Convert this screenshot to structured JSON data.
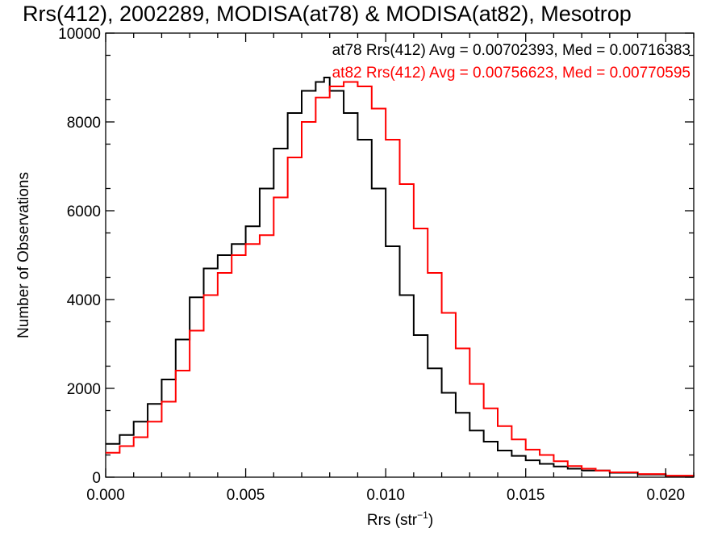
{
  "chart_data": {
    "type": "line",
    "title": "Rrs(412), 2002289, MODISA(at78) & MODISA(at82), Mesotrop",
    "xlabel": "Rrs (str",
    "xlabel_sup": "−1",
    "xlabel_close": ")",
    "ylabel": "Number of Observations",
    "xlim": [
      0,
      0.021
    ],
    "ylim": [
      0,
      10000
    ],
    "x_ticks": [
      0.0,
      0.005,
      0.01,
      0.015,
      0.02
    ],
    "x_tick_labels": [
      "0.000",
      "0.005",
      "0.010",
      "0.015",
      "0.020"
    ],
    "y_ticks": [
      0,
      2000,
      4000,
      6000,
      8000,
      10000
    ],
    "y_tick_labels": [
      "0",
      "2000",
      "4000",
      "6000",
      "8000",
      "10000"
    ],
    "grid": false,
    "legend_placement": "top-right",
    "annotations": [
      "at78 Rrs(412) Avg = 0.00702393, Med = 0.00716383",
      "at82 Rrs(412) Avg = 0.00756623, Med = 0.00770595"
    ],
    "series": [
      {
        "name": "at78",
        "color": "#000000",
        "x": [
          0.0,
          0.0005,
          0.001,
          0.0015,
          0.002,
          0.0025,
          0.003,
          0.0035,
          0.004,
          0.0045,
          0.005,
          0.0055,
          0.006,
          0.0065,
          0.007,
          0.0075,
          0.0078,
          0.008,
          0.0085,
          0.009,
          0.0095,
          0.01,
          0.0105,
          0.011,
          0.0115,
          0.012,
          0.0125,
          0.013,
          0.0135,
          0.014,
          0.0145,
          0.015,
          0.0155,
          0.016,
          0.0165,
          0.017,
          0.018,
          0.019,
          0.02,
          0.021
        ],
        "y": [
          750,
          950,
          1250,
          1650,
          2200,
          3100,
          4050,
          4700,
          5000,
          5250,
          5650,
          6500,
          7400,
          8200,
          8700,
          8900,
          9000,
          8700,
          8200,
          7600,
          6500,
          5200,
          4100,
          3200,
          2450,
          1900,
          1450,
          1050,
          800,
          600,
          480,
          380,
          300,
          240,
          190,
          150,
          100,
          60,
          30,
          15
        ]
      },
      {
        "name": "at82",
        "color": "#ff0000",
        "x": [
          0.0,
          0.0005,
          0.001,
          0.0015,
          0.002,
          0.0025,
          0.003,
          0.0035,
          0.004,
          0.0045,
          0.005,
          0.0055,
          0.006,
          0.0065,
          0.007,
          0.0075,
          0.008,
          0.0085,
          0.009,
          0.0095,
          0.01,
          0.0105,
          0.011,
          0.0115,
          0.012,
          0.0125,
          0.013,
          0.0135,
          0.014,
          0.0145,
          0.015,
          0.0155,
          0.016,
          0.0165,
          0.017,
          0.0175,
          0.018,
          0.019,
          0.02,
          0.021
        ],
        "y": [
          550,
          700,
          900,
          1250,
          1700,
          2400,
          3300,
          4100,
          4600,
          5000,
          5250,
          5450,
          6300,
          7200,
          8000,
          8550,
          8800,
          8900,
          8800,
          8300,
          7600,
          6600,
          5600,
          4600,
          3700,
          2900,
          2100,
          1550,
          1150,
          850,
          620,
          500,
          360,
          250,
          190,
          150,
          110,
          70,
          35,
          20
        ]
      }
    ]
  }
}
